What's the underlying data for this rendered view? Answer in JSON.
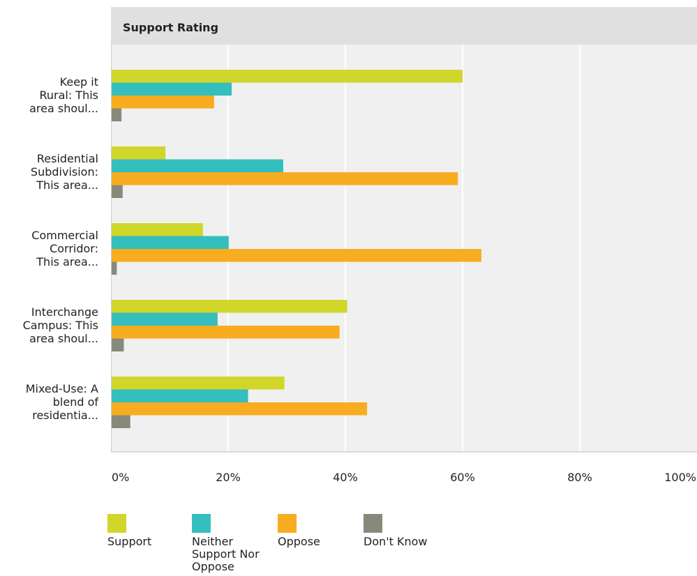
{
  "chart_data": {
    "type": "bar",
    "orientation": "horizontal",
    "title": "Support Rating",
    "categories": [
      [
        "Keep it",
        "Rural: This",
        "area shoul..."
      ],
      [
        "Residential",
        "Subdivision:",
        "This area..."
      ],
      [
        "Commercial",
        "Corridor:",
        "This area..."
      ],
      [
        "Interchange",
        "Campus: This",
        "area shoul..."
      ],
      [
        "Mixed-Use: A",
        "blend of",
        "residentia..."
      ]
    ],
    "series": [
      {
        "name": "Support",
        "color": "#d0d62a",
        "values": [
          60.0,
          9.3,
          15.7,
          40.3,
          29.6
        ]
      },
      {
        "name": "Neither Support Nor Oppose",
        "color": "#34bebd",
        "values": [
          20.6,
          29.4,
          20.1,
          18.2,
          23.4
        ]
      },
      {
        "name": "Oppose",
        "color": "#f8ac1f",
        "values": [
          17.6,
          59.2,
          63.2,
          39.0,
          43.7
        ]
      },
      {
        "name": "Don't Know",
        "color": "#878a7a",
        "values": [
          1.8,
          2.0,
          1.0,
          2.2,
          3.3
        ]
      }
    ],
    "legend_lines": [
      [
        "Support"
      ],
      [
        "Neither",
        "Support Nor",
        "Oppose"
      ],
      [
        "Oppose"
      ],
      [
        "Don't Know"
      ]
    ],
    "x_ticks": [
      "0%",
      "20%",
      "40%",
      "60%",
      "80%",
      "100%"
    ],
    "xlim": [
      0,
      100
    ],
    "xlabel": "",
    "ylabel": "",
    "grid": true,
    "legend_position": "bottom"
  }
}
